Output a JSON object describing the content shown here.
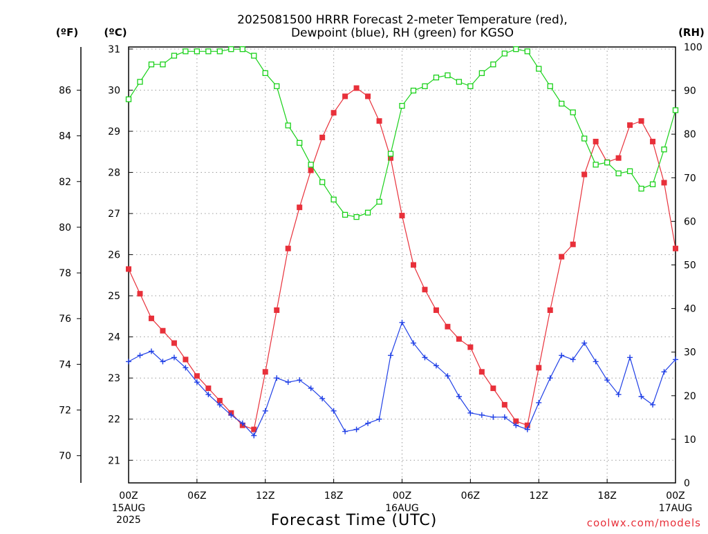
{
  "chart_data": {
    "type": "line",
    "title_line1": "2025081500 HRRR Forecast 2-meter Temperature (red),",
    "title_line2": "Dewpoint (blue), RH (green) for KGSO",
    "left_unit_f": "(ºF)",
    "left_unit_c": "(ºC)",
    "right_unit": "(RH)",
    "xlabel": "Forecast Time (UTC)",
    "credit": "coolwx.com/models",
    "x_range_hours": [
      0,
      48
    ],
    "x_tick_hours": [
      0,
      6,
      12,
      18,
      24,
      30,
      36,
      42,
      48
    ],
    "x_tick_labels": [
      "00Z",
      "06Z",
      "12Z",
      "18Z",
      "00Z",
      "06Z",
      "12Z",
      "18Z",
      "00Z"
    ],
    "x_date_labels": [
      {
        "hour": 0,
        "lines": [
          "15AUG",
          "2025"
        ]
      },
      {
        "hour": 24,
        "lines": [
          "16AUG"
        ]
      },
      {
        "hour": 48,
        "lines": [
          "17AUG"
        ]
      }
    ],
    "celsius_axis": {
      "range": [
        20.45,
        31.05
      ],
      "ticks": [
        21,
        22,
        23,
        24,
        25,
        26,
        27,
        28,
        29,
        30,
        31
      ]
    },
    "fahrenheit_ticks": [
      70,
      72,
      74,
      76,
      78,
      80,
      82,
      84,
      86
    ],
    "rh_axis": {
      "range": [
        0,
        100
      ],
      "ticks": [
        0,
        10,
        20,
        30,
        40,
        50,
        60,
        70,
        80,
        90,
        100
      ]
    },
    "grid": true,
    "series": [
      {
        "name": "2-meter Temperature",
        "units": "°C",
        "color": "#e8303a",
        "marker": "filled-square",
        "x": [
          0,
          1,
          2,
          3,
          4,
          5,
          6,
          7,
          8,
          9,
          10,
          11,
          12,
          13,
          14,
          15,
          16,
          17,
          18,
          19,
          20,
          21,
          22,
          23,
          24,
          25,
          26,
          27,
          28,
          29,
          30,
          31,
          32,
          33,
          34,
          35,
          36,
          37,
          38,
          39,
          40,
          41,
          42,
          43,
          44,
          45,
          46,
          47,
          48
        ],
        "values": [
          25.65,
          25.05,
          24.45,
          24.15,
          23.85,
          23.45,
          23.05,
          22.75,
          22.45,
          22.15,
          21.85,
          21.75,
          23.15,
          24.65,
          26.15,
          27.15,
          28.05,
          28.85,
          29.45,
          29.85,
          30.05,
          29.85,
          29.25,
          28.35,
          26.95,
          25.75,
          25.15,
          24.65,
          24.25,
          23.95,
          23.75,
          23.15,
          22.75,
          22.35,
          21.95,
          21.85,
          23.25,
          24.65,
          25.95,
          26.25,
          27.95,
          28.75,
          28.25,
          28.35,
          29.15,
          29.25,
          28.75,
          27.75,
          26.15
        ]
      },
      {
        "name": "Dewpoint",
        "units": "°C",
        "color": "#1f3fe6",
        "marker": "plus",
        "x": [
          0,
          1,
          2,
          3,
          4,
          5,
          6,
          7,
          8,
          9,
          10,
          11,
          12,
          13,
          14,
          15,
          16,
          17,
          18,
          19,
          20,
          21,
          22,
          23,
          24,
          25,
          26,
          27,
          28,
          29,
          30,
          31,
          32,
          33,
          34,
          35,
          36,
          37,
          38,
          39,
          40,
          41,
          42,
          43,
          44,
          45,
          46,
          47,
          48
        ],
        "values": [
          23.4,
          23.55,
          23.65,
          23.4,
          23.5,
          23.25,
          22.9,
          22.6,
          22.35,
          22.1,
          21.9,
          21.6,
          22.2,
          23.0,
          22.9,
          22.95,
          22.75,
          22.5,
          22.2,
          21.7,
          21.75,
          21.9,
          22.0,
          23.55,
          24.35,
          23.85,
          23.5,
          23.3,
          23.05,
          22.55,
          22.15,
          22.1,
          22.05,
          22.05,
          21.85,
          21.75,
          22.4,
          23.0,
          23.55,
          23.45,
          23.85,
          23.4,
          22.95,
          22.6,
          23.5,
          22.55,
          22.35,
          23.15,
          23.45
        ]
      },
      {
        "name": "RH",
        "units": "%",
        "color": "#19d119",
        "marker": "open-square",
        "x": [
          0,
          1,
          2,
          3,
          4,
          5,
          6,
          7,
          8,
          9,
          10,
          11,
          12,
          13,
          14,
          15,
          16,
          17,
          18,
          19,
          20,
          21,
          22,
          23,
          24,
          25,
          26,
          27,
          28,
          29,
          30,
          31,
          32,
          33,
          34,
          35,
          36,
          37,
          38,
          39,
          40,
          41,
          42,
          43,
          44,
          45,
          46,
          47,
          48
        ],
        "values": [
          88,
          92,
          96,
          96,
          98,
          99,
          99,
          99,
          99,
          99.5,
          99.5,
          98,
          94,
          91,
          82,
          78,
          73,
          69,
          65,
          61.5,
          61,
          62,
          64.5,
          75.5,
          86.5,
          90,
          91,
          93,
          93.5,
          92,
          91,
          94,
          96,
          98.5,
          99.5,
          99,
          95,
          91,
          87,
          85,
          79,
          73,
          73.5,
          71,
          71.5,
          67.5,
          68.5,
          76.5,
          85.5
        ]
      }
    ]
  }
}
